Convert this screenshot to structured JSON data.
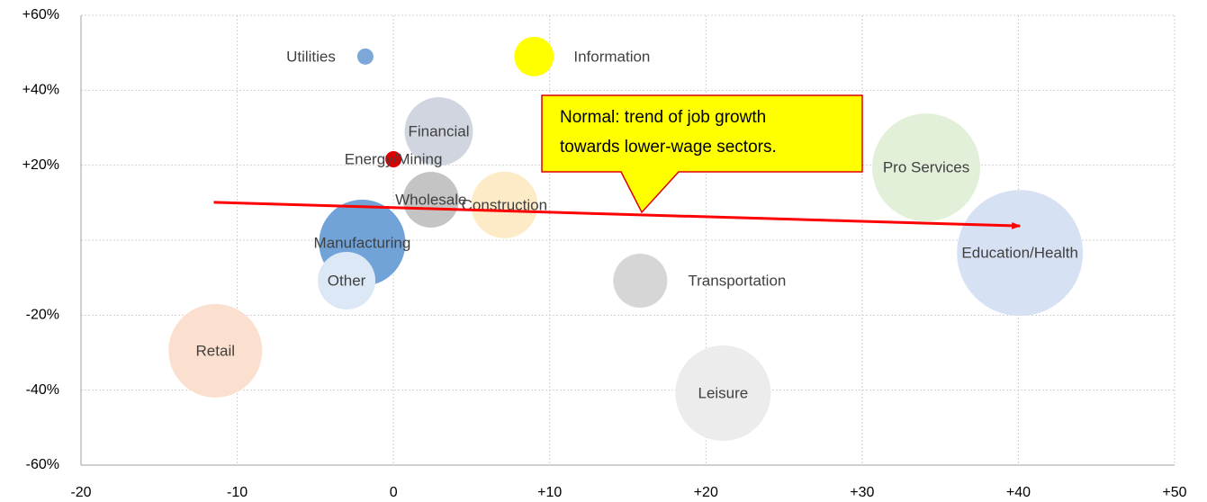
{
  "chart_data": {
    "type": "bubble",
    "labels": [
      "Utilities",
      "Information",
      "Financial",
      "Energy/Mining",
      "Wholesale",
      "Construction",
      "Manufacturing",
      "Other",
      "Retail",
      "Transportation",
      "Leisure",
      "Pro Services",
      "Education/Health"
    ],
    "x": [
      -1.8,
      9.0,
      2.9,
      0,
      2.4,
      7.1,
      -2.0,
      -3.0,
      -11.4,
      15.8,
      21.1,
      34.1,
      40.1
    ],
    "values": [
      49,
      49,
      29,
      21.6,
      10.8,
      9.4,
      -0.7,
      -10.8,
      -29.5,
      -10.8,
      -40.8,
      19.4,
      -3.4
    ],
    "sizes": [
      9,
      22,
      38,
      9,
      31,
      37,
      48,
      32,
      52,
      30,
      53,
      60,
      70
    ],
    "colors": [
      "#7ba7d9",
      "#ffff00",
      "#d0d5e0",
      "#e00000",
      "#c4c4c4",
      "#fdebc8",
      "#72a3d8",
      "#dce8f5",
      "#fbe0d0",
      "#d6d6d6",
      "#ececec",
      "#e2efd9",
      "#d7e1f4"
    ],
    "xlim": [
      -20,
      50
    ],
    "xticks": [
      -20,
      -10,
      0,
      {
        "value": 10,
        "label": "+10"
      },
      {
        "value": 20,
        "label": "+20"
      },
      {
        "value": 30,
        "label": "+30"
      },
      {
        "value": 40,
        "label": "+40"
      },
      {
        "value": 50,
        "label": "+50"
      }
    ],
    "ylim": [
      -60,
      60
    ],
    "yticks": [
      {
        "value": -60,
        "label": "-60%"
      },
      {
        "value": -40,
        "label": "-40%"
      },
      {
        "value": -20,
        "label": "-20%"
      },
      {
        "value": 0,
        "label": ""
      },
      {
        "value": 20,
        "label": "+20%"
      },
      {
        "value": 40,
        "label": "+40%"
      },
      {
        "value": 60,
        "label": "+60%"
      }
    ],
    "grid": true,
    "trend_line": {
      "x": [
        -11.5,
        40.1
      ],
      "y": [
        10.1,
        3.8
      ],
      "color": "#ff0000"
    },
    "annotation": [
      "Normal: trend of job growth",
      "towards lower-wage sectors."
    ]
  }
}
